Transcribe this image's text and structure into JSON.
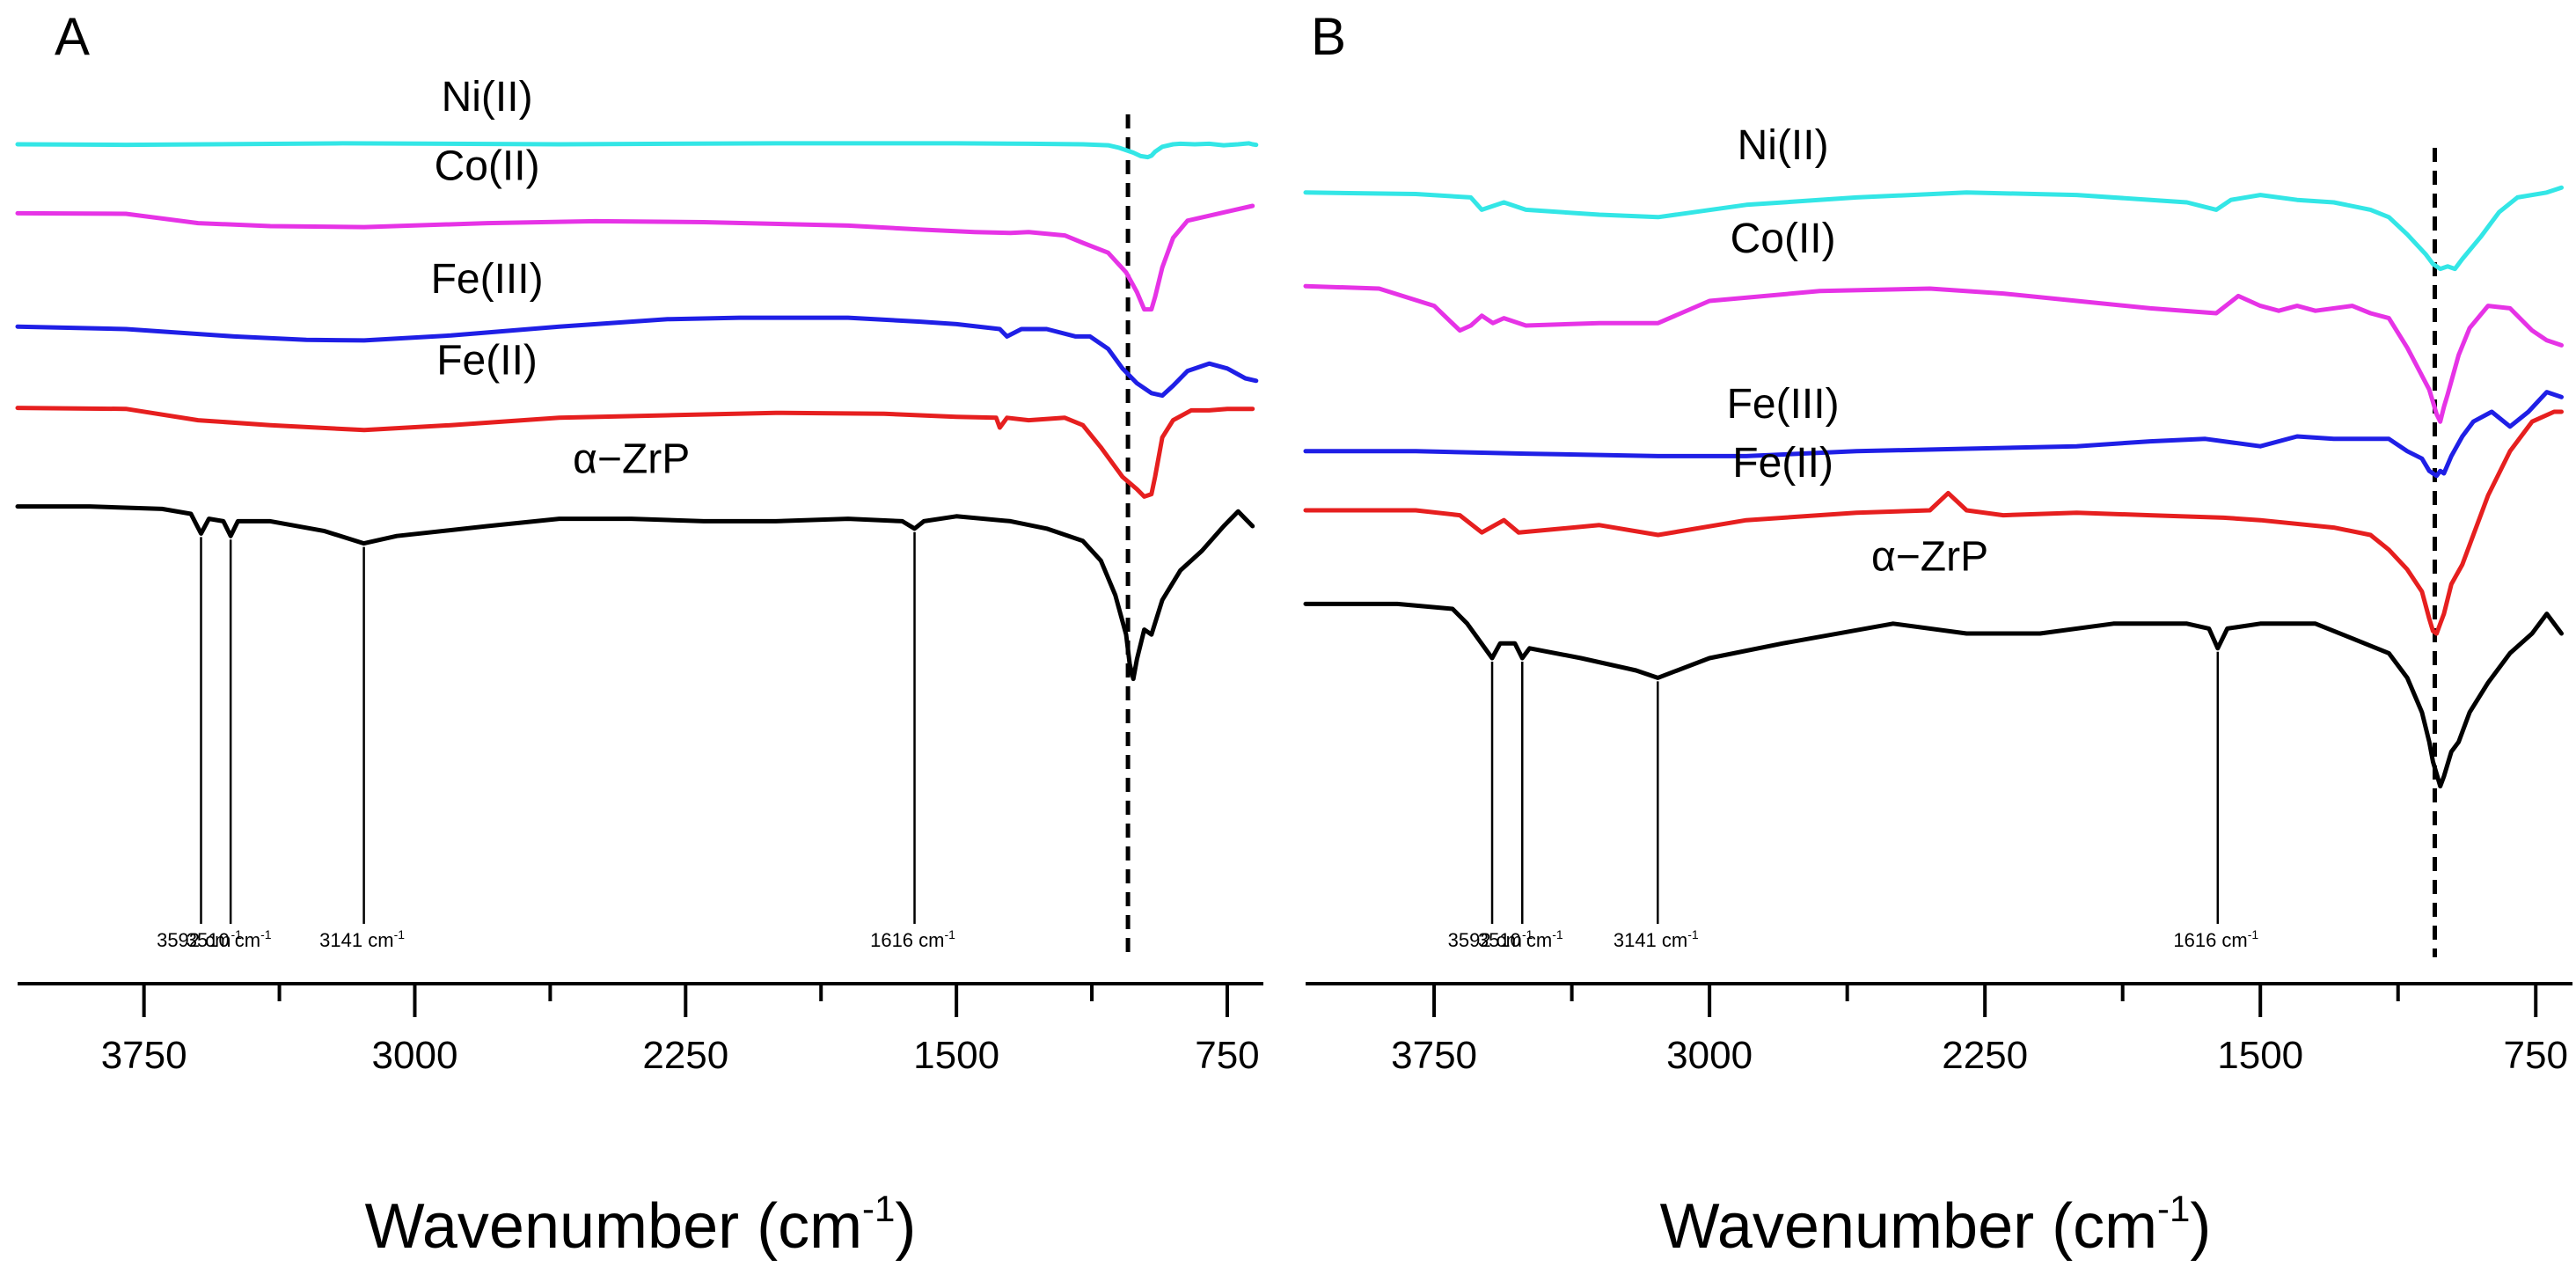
{
  "chart_data": [
    {
      "panel": "A",
      "type": "line",
      "xlabel": "Wavenumber (cm",
      "xlabel_sup": "-1",
      "xlabel_close": ")",
      "xlim": [
        4100,
        650
      ],
      "x_reversed": true,
      "ticks": [
        3750,
        3000,
        2250,
        1500,
        750
      ],
      "tick_labels": [
        "3750",
        "3000",
        "2250",
        "1500",
        "750"
      ],
      "minor_ticks": [
        3375,
        2625,
        1875,
        1125
      ],
      "dashed_line_x": 1025,
      "series": [
        {
          "name": "Ni(II)",
          "label": "Ni(II)",
          "color": "#33e6e6",
          "base": 0.25,
          "label_x": 2800,
          "x": [
            4100,
            3800,
            3200,
            2600,
            2000,
            1500,
            1300,
            1150,
            1080,
            1050,
            1010,
            990,
            970,
            960,
            950,
            930,
            900,
            880,
            840,
            800,
            760,
            720,
            690,
            680,
            670
          ],
          "y": [
            0,
            0.01,
            -0.02,
            0,
            -0.02,
            -0.02,
            -0.01,
            0,
            0.02,
            0.07,
            0.17,
            0.24,
            0.26,
            0.23,
            0.15,
            0.05,
            0,
            -0.01,
            0,
            -0.01,
            0.02,
            0,
            -0.02,
            0,
            0.01
          ]
        },
        {
          "name": "Co(II)",
          "label": "Co(II)",
          "color": "#e633e6",
          "base": 1.65,
          "label_x": 2800,
          "x": [
            4100,
            3800,
            3600,
            3400,
            3140,
            2800,
            2500,
            2200,
            1800,
            1600,
            1450,
            1350,
            1300,
            1200,
            1150,
            1080,
            1030,
            1000,
            980,
            960,
            950,
            930,
            900,
            860,
            800,
            740,
            680
          ],
          "y": [
            0,
            0.01,
            0.2,
            0.26,
            0.28,
            0.2,
            0.16,
            0.18,
            0.25,
            0.33,
            0.38,
            0.4,
            0.38,
            0.45,
            0.6,
            0.8,
            1.2,
            1.6,
            1.95,
            1.95,
            1.7,
            1.1,
            0.5,
            0.15,
            0.05,
            -0.05,
            -0.15
          ]
        },
        {
          "name": "Fe(III)",
          "label": "Fe(III)",
          "color": "#1f1fe6",
          "base": 3.95,
          "label_x": 2800,
          "x": [
            4100,
            3800,
            3500,
            3300,
            3140,
            2900,
            2600,
            2300,
            2100,
            1800,
            1600,
            1500,
            1380,
            1360,
            1320,
            1250,
            1170,
            1130,
            1080,
            1040,
            1000,
            960,
            930,
            900,
            860,
            800,
            750,
            700,
            670
          ],
          "y": [
            0,
            0.05,
            0.2,
            0.27,
            0.28,
            0.18,
            0,
            -0.15,
            -0.18,
            -0.18,
            -0.1,
            -0.05,
            0.05,
            0.2,
            0.05,
            0.05,
            0.2,
            0.2,
            0.45,
            0.85,
            1.15,
            1.35,
            1.4,
            1.2,
            0.9,
            0.75,
            0.85,
            1.05,
            1.1
          ]
        },
        {
          "name": "Fe(II)",
          "label": "Fe(II)",
          "color": "#e61f1f",
          "base": 5.6,
          "label_x": 2800,
          "x": [
            4100,
            3800,
            3600,
            3400,
            3140,
            2900,
            2600,
            2300,
            2000,
            1700,
            1500,
            1390,
            1380,
            1360,
            1300,
            1200,
            1150,
            1100,
            1040,
            1000,
            980,
            960,
            950,
            930,
            900,
            850,
            800,
            750,
            680
          ],
          "y": [
            0,
            0.02,
            0.25,
            0.35,
            0.45,
            0.35,
            0.2,
            0.15,
            0.1,
            0.12,
            0.18,
            0.2,
            0.4,
            0.2,
            0.25,
            0.2,
            0.35,
            0.8,
            1.4,
            1.65,
            1.8,
            1.75,
            1.4,
            0.6,
            0.25,
            0.05,
            0.05,
            0.02,
            0.02
          ]
        },
        {
          "name": "α−ZrP",
          "label": "α−ZrP",
          "color": "#000000",
          "base": 7.6,
          "label_x": 2400,
          "x": [
            4100,
            3900,
            3700,
            3620,
            3592,
            3570,
            3530,
            3510,
            3490,
            3400,
            3250,
            3141,
            3050,
            2800,
            2600,
            2400,
            2200,
            2000,
            1800,
            1650,
            1616,
            1590,
            1500,
            1350,
            1250,
            1150,
            1100,
            1060,
            1030,
            1020,
            1010,
            1000,
            980,
            960,
            930,
            880,
            820,
            760,
            720,
            680
          ],
          "y": [
            0,
            0,
            0.05,
            0.15,
            0.55,
            0.25,
            0.3,
            0.6,
            0.3,
            0.3,
            0.5,
            0.75,
            0.6,
            0.4,
            0.25,
            0.25,
            0.3,
            0.3,
            0.25,
            0.3,
            0.45,
            0.3,
            0.2,
            0.3,
            0.45,
            0.7,
            1.1,
            1.8,
            2.6,
            3.2,
            3.5,
            3.1,
            2.5,
            2.6,
            1.9,
            1.3,
            0.9,
            0.4,
            0.1,
            0.4
          ]
        }
      ],
      "annotations": [
        {
          "x": 3592,
          "text": "3592 cm",
          "sup": "-1"
        },
        {
          "x": 3510,
          "text": "3510 cm",
          "sup": "-1"
        },
        {
          "x": 3141,
          "text": "3141 cm",
          "sup": "-1"
        },
        {
          "x": 1616,
          "text": "1616 cm",
          "sup": "-1"
        }
      ]
    },
    {
      "panel": "B",
      "type": "line",
      "xlabel": "Wavenumber (cm",
      "xlabel_sup": "-1",
      "xlabel_close": ")",
      "xlim": [
        4100,
        650
      ],
      "x_reversed": true,
      "ticks": [
        3750,
        3000,
        2250,
        1500,
        750
      ],
      "tick_labels": [
        "3750",
        "3000",
        "2250",
        "1500",
        "750"
      ],
      "minor_ticks": [
        3375,
        2625,
        1875,
        1125
      ],
      "dashed_line_x": 1025,
      "series": [
        {
          "name": "Ni(II)",
          "label": "Ni(II)",
          "color": "#33e6e6",
          "base": 0.55,
          "label_x": 2800,
          "x": [
            4100,
            3800,
            3650,
            3620,
            3560,
            3500,
            3300,
            3140,
            2900,
            2600,
            2300,
            2000,
            1700,
            1620,
            1580,
            1500,
            1400,
            1300,
            1200,
            1150,
            1100,
            1050,
            1030,
            1010,
            990,
            970,
            950,
            900,
            850,
            800,
            720,
            680
          ],
          "y": [
            0,
            0.03,
            0.1,
            0.35,
            0.2,
            0.35,
            0.45,
            0.5,
            0.25,
            0.1,
            0,
            0.05,
            0.2,
            0.35,
            0.15,
            0.05,
            0.15,
            0.2,
            0.35,
            0.5,
            0.85,
            1.25,
            1.45,
            1.55,
            1.5,
            1.55,
            1.35,
            0.9,
            0.4,
            0.1,
            0,
            -0.1
          ]
        },
        {
          "name": "Co(II)",
          "label": "Co(II)",
          "color": "#e633e6",
          "base": 2.45,
          "label_x": 2800,
          "x": [
            4100,
            3900,
            3750,
            3680,
            3650,
            3620,
            3590,
            3560,
            3500,
            3300,
            3140,
            3000,
            2700,
            2400,
            2200,
            2000,
            1800,
            1620,
            1560,
            1500,
            1450,
            1400,
            1350,
            1250,
            1200,
            1150,
            1100,
            1040,
            1020,
            1010,
            1000,
            990,
            960,
            930,
            880,
            820,
            760,
            720,
            680
          ],
          "y": [
            0,
            0.05,
            0.4,
            0.9,
            0.8,
            0.6,
            0.75,
            0.65,
            0.8,
            0.75,
            0.75,
            0.3,
            0.1,
            0.05,
            0.15,
            0.3,
            0.45,
            0.55,
            0.2,
            0.4,
            0.5,
            0.4,
            0.5,
            0.4,
            0.55,
            0.65,
            1.25,
            2.1,
            2.6,
            2.75,
            2.45,
            2.2,
            1.4,
            0.85,
            0.4,
            0.45,
            0.9,
            1.1,
            1.2
          ]
        },
        {
          "name": "Fe(III)",
          "label": "Fe(III)",
          "color": "#1f1fe6",
          "base": 5.8,
          "label_x": 2800,
          "x": [
            4100,
            3800,
            3500,
            3140,
            2900,
            2600,
            2300,
            2000,
            1800,
            1650,
            1500,
            1400,
            1300,
            1150,
            1100,
            1060,
            1040,
            1020,
            1010,
            1000,
            980,
            950,
            920,
            870,
            820,
            770,
            720,
            680
          ],
          "y": [
            0,
            0,
            0.05,
            0.1,
            0.1,
            0,
            -0.05,
            -0.1,
            -0.2,
            -0.25,
            -0.1,
            -0.3,
            -0.25,
            -0.25,
            0,
            0.15,
            0.4,
            0.5,
            0.4,
            0.45,
            0.1,
            -0.3,
            -0.6,
            -0.8,
            -0.5,
            -0.8,
            -1.2,
            -1.1
          ]
        },
        {
          "name": "Fe(II)",
          "label": "Fe(II)",
          "color": "#e61f1f",
          "base": 7.0,
          "label_x": 2800,
          "x": [
            4100,
            3800,
            3680,
            3620,
            3560,
            3520,
            3300,
            3140,
            2900,
            2600,
            2400,
            2350,
            2300,
            2200,
            2000,
            1800,
            1600,
            1500,
            1300,
            1200,
            1150,
            1100,
            1060,
            1040,
            1030,
            1020,
            1010,
            1000,
            980,
            950,
            920,
            880,
            820,
            760,
            700,
            680
          ],
          "y": [
            0,
            0,
            0.1,
            0.45,
            0.2,
            0.45,
            0.3,
            0.5,
            0.2,
            0.05,
            0,
            -0.35,
            0,
            0.1,
            0.05,
            0.1,
            0.15,
            0.2,
            0.35,
            0.5,
            0.8,
            1.2,
            1.65,
            2.2,
            2.45,
            2.5,
            2.3,
            2.1,
            1.5,
            1.1,
            0.5,
            -0.3,
            -1.2,
            -1.8,
            -2.0,
            -2.0
          ]
        },
        {
          "name": "α−ZrP",
          "label": "α−ZrP",
          "color": "#000000",
          "base": 8.9,
          "label_x": 2400,
          "x": [
            4100,
            3850,
            3700,
            3660,
            3592,
            3570,
            3530,
            3510,
            3490,
            3350,
            3200,
            3141,
            3000,
            2800,
            2500,
            2300,
            2100,
            1900,
            1700,
            1640,
            1616,
            1590,
            1500,
            1350,
            1250,
            1150,
            1100,
            1060,
            1040,
            1030,
            1020,
            1010,
            1000,
            980,
            960,
            930,
            880,
            820,
            760,
            720,
            680
          ],
          "y": [
            0,
            0,
            0.1,
            0.4,
            1.1,
            0.8,
            0.8,
            1.1,
            0.9,
            1.1,
            1.35,
            1.5,
            1.1,
            0.8,
            0.4,
            0.6,
            0.6,
            0.4,
            0.4,
            0.5,
            0.9,
            0.5,
            0.4,
            0.4,
            0.7,
            1.0,
            1.5,
            2.2,
            2.8,
            3.2,
            3.45,
            3.7,
            3.5,
            3.0,
            2.8,
            2.2,
            1.6,
            1.0,
            0.6,
            0.2,
            0.6
          ]
        }
      ],
      "annotations": [
        {
          "x": 3592,
          "text": "3592 cm",
          "sup": "-1"
        },
        {
          "x": 3510,
          "text": "3510 cm",
          "sup": "-1"
        },
        {
          "x": 3141,
          "text": "3141 cm",
          "sup": "-1"
        },
        {
          "x": 1616,
          "text": "1616 cm",
          "sup": "-1"
        }
      ]
    }
  ]
}
